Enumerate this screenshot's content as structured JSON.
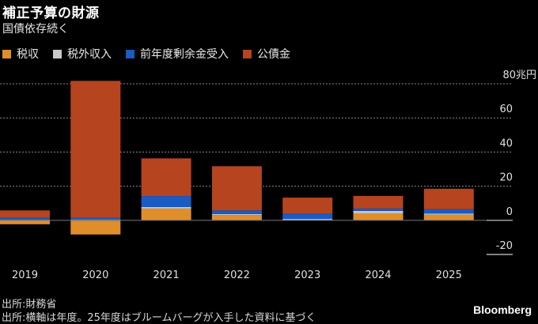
{
  "chart_data": {
    "type": "bar",
    "stacked": true,
    "title": "補正予算の財源",
    "subtitle": "国債依存続く",
    "xlabel": "",
    "ylabel": "",
    "y_unit_label": "80兆円",
    "ylim": [
      -20,
      80
    ],
    "yticks": [
      -20,
      0,
      20,
      40,
      60,
      80
    ],
    "ytick_labels": [
      "-20",
      "0",
      "20",
      "40",
      "60",
      "80兆円"
    ],
    "grid": true,
    "legend_position": "top-left",
    "categories": [
      "2019",
      "2020",
      "2021",
      "2022",
      "2023",
      "2024",
      "2025"
    ],
    "series": [
      {
        "name": "税収",
        "color": "#E08E2A",
        "values": [
          -2.3,
          -8.3,
          6.9,
          3.1,
          0.0,
          4.1,
          3.3
        ]
      },
      {
        "name": "税外収入",
        "color": "#C8C8C8",
        "values": [
          0.4,
          0.5,
          0.9,
          0.6,
          0.8,
          1.4,
          0.7
        ]
      },
      {
        "name": "前年度剰余金受入",
        "color": "#1A5BC4",
        "values": [
          1.0,
          0.9,
          6.4,
          2.1,
          3.1,
          1.4,
          2.5
        ]
      },
      {
        "name": "公債金",
        "color": "#B5441F",
        "values": [
          4.4,
          80.3,
          22.1,
          25.9,
          9.4,
          7.4,
          12.0
        ]
      }
    ]
  },
  "footer": {
    "source": "出所:財務省",
    "note": "出所:横軸は年度。25年度はブルームバーグが入手した資料に基づく",
    "brand": "Bloomberg"
  }
}
